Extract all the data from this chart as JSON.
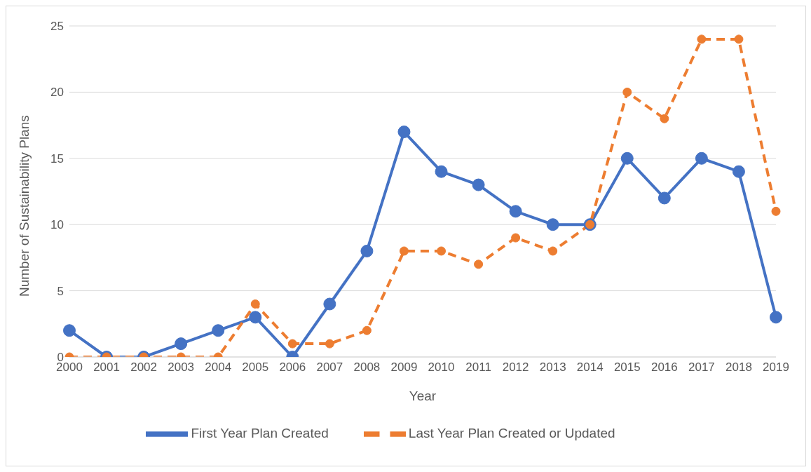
{
  "chart_data": {
    "type": "line",
    "xlabel": "Year",
    "ylabel": "Number of Sustainability Plans",
    "categories": [
      "2000",
      "2001",
      "2002",
      "2003",
      "2004",
      "2005",
      "2006",
      "2007",
      "2008",
      "2009",
      "2010",
      "2011",
      "2012",
      "2013",
      "2014",
      "2015",
      "2016",
      "2017",
      "2018",
      "2019"
    ],
    "series": [
      {
        "name": "First Year Plan Created",
        "color": "#4472c4",
        "line_style": "solid",
        "values": [
          2,
          0,
          0,
          1,
          2,
          3,
          0,
          4,
          8,
          17,
          14,
          13,
          11,
          10,
          10,
          15,
          12,
          15,
          14,
          3
        ]
      },
      {
        "name": "Last Year Plan Created or Updated",
        "color": "#ed7d31",
        "line_style": "dashed",
        "values": [
          0,
          0,
          0,
          0,
          0,
          4,
          1,
          1,
          2,
          8,
          8,
          7,
          9,
          8,
          10,
          20,
          18,
          24,
          24,
          11
        ]
      }
    ],
    "ylim": [
      0,
      25
    ],
    "yticks": [
      0,
      5,
      10,
      15,
      20,
      25
    ],
    "grid": "y",
    "legend": "bottom",
    "marker": "circle"
  }
}
